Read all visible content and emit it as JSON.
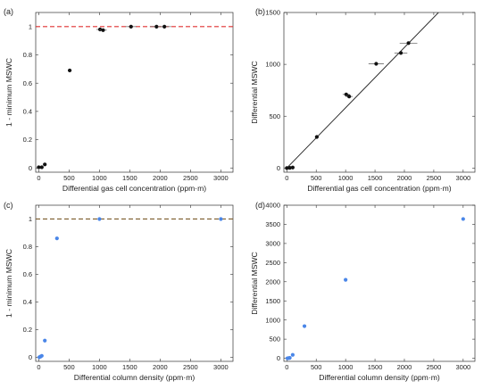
{
  "chart_data": [
    {
      "id": "a",
      "panel_label": "(a)",
      "type": "scatter",
      "xlabel": "Differential gas cell concentration (ppm·m)",
      "ylabel": "1 - minimum MSWC",
      "xlim": [
        -50,
        3200
      ],
      "ylim": [
        -0.03,
        1.1
      ],
      "xticks": [
        0,
        500,
        1000,
        1500,
        2000,
        2500,
        3000
      ],
      "yticks": [
        0,
        0.2,
        0.4,
        0.6,
        0.8,
        1
      ],
      "ytick_labels": [
        "0",
        "0.2",
        "0.4",
        "0.6",
        "0.8",
        "1"
      ],
      "reference_line": {
        "y": 1,
        "color": "#e03030",
        "style": "dashed"
      },
      "marker_color": "#111111",
      "points": [
        {
          "x": 0,
          "y": 0.005,
          "xerr": 10
        },
        {
          "x": 50,
          "y": 0.005,
          "xerr": 10
        },
        {
          "x": 100,
          "y": 0.025,
          "xerr": 10
        },
        {
          "x": 510,
          "y": 0.69,
          "xerr": 30
        },
        {
          "x": 1010,
          "y": 0.98,
          "xerr": 60
        },
        {
          "x": 1060,
          "y": 0.975,
          "xerr": 60
        },
        {
          "x": 1520,
          "y": 1.0,
          "xerr": 90
        },
        {
          "x": 1940,
          "y": 1.0,
          "xerr": 110
        },
        {
          "x": 2070,
          "y": 1.0,
          "xerr": 110
        }
      ]
    },
    {
      "id": "b",
      "panel_label": "(b)",
      "type": "scatter",
      "xlabel": "Differential gas cell concentration (ppm·m)",
      "ylabel": "Differential MSWC",
      "xlim": [
        -50,
        3200
      ],
      "ylim": [
        -40,
        1500
      ],
      "xticks": [
        0,
        500,
        1000,
        1500,
        2000,
        2500,
        3000
      ],
      "yticks": [
        0,
        500,
        1000,
        1500
      ],
      "ytick_labels": [
        "0",
        "500",
        "1000",
        "1500"
      ],
      "fit_line": {
        "x": [
          0,
          2580
        ],
        "y": [
          0,
          1500
        ],
        "color": "#222222"
      },
      "marker_color": "#111111",
      "points": [
        {
          "x": 0,
          "y": 0,
          "xerr": 10
        },
        {
          "x": 50,
          "y": 2,
          "xerr": 10
        },
        {
          "x": 100,
          "y": 5,
          "xerr": 10
        },
        {
          "x": 510,
          "y": 300,
          "xerr": 30
        },
        {
          "x": 1010,
          "y": 710,
          "xerr": 60
        },
        {
          "x": 1060,
          "y": 690,
          "xerr": 60
        },
        {
          "x": 1520,
          "y": 1005,
          "xerr": 130
        },
        {
          "x": 1940,
          "y": 1110,
          "xerr": 110
        },
        {
          "x": 2070,
          "y": 1205,
          "xerr": 150
        }
      ]
    },
    {
      "id": "c",
      "panel_label": "(c)",
      "type": "scatter",
      "xlabel": "Differential column density (ppm·m)",
      "ylabel": "1 - minimum MSWC",
      "xlim": [
        -50,
        3200
      ],
      "ylim": [
        -0.03,
        1.1
      ],
      "xticks": [
        0,
        500,
        1000,
        1500,
        2000,
        2500,
        3000
      ],
      "yticks": [
        0,
        0.2,
        0.4,
        0.6,
        0.8,
        1
      ],
      "ytick_labels": [
        "0",
        "0.2",
        "0.4",
        "0.6",
        "0.8",
        "1"
      ],
      "reference_line": {
        "y": 1,
        "color": "#7a5a2a",
        "style": "dashed"
      },
      "marker_color": "#4a86e8",
      "points": [
        {
          "x": 10,
          "y": 0.0
        },
        {
          "x": 30,
          "y": 0.005
        },
        {
          "x": 50,
          "y": 0.01
        },
        {
          "x": 100,
          "y": 0.12
        },
        {
          "x": 300,
          "y": 0.86
        },
        {
          "x": 1000,
          "y": 1.0
        },
        {
          "x": 3000,
          "y": 1.0
        }
      ]
    },
    {
      "id": "d",
      "panel_label": "(d)",
      "type": "scatter",
      "xlabel": "Differential column density (ppm·m)",
      "ylabel": "Differential MSWC",
      "xlim": [
        -50,
        3200
      ],
      "ylim": [
        -80,
        4000
      ],
      "xticks": [
        0,
        500,
        1000,
        1500,
        2000,
        2500,
        3000
      ],
      "yticks": [
        0,
        500,
        1000,
        1500,
        2000,
        2500,
        3000,
        3500,
        4000
      ],
      "ytick_labels": [
        "0",
        "500",
        "1000",
        "1500",
        "2000",
        "2500",
        "3000",
        "3500",
        "4000"
      ],
      "marker_color": "#4a86e8",
      "points": [
        {
          "x": 10,
          "y": 0
        },
        {
          "x": 30,
          "y": 5
        },
        {
          "x": 50,
          "y": 10
        },
        {
          "x": 100,
          "y": 90
        },
        {
          "x": 300,
          "y": 840
        },
        {
          "x": 1000,
          "y": 2050
        },
        {
          "x": 3000,
          "y": 3640
        }
      ]
    }
  ]
}
